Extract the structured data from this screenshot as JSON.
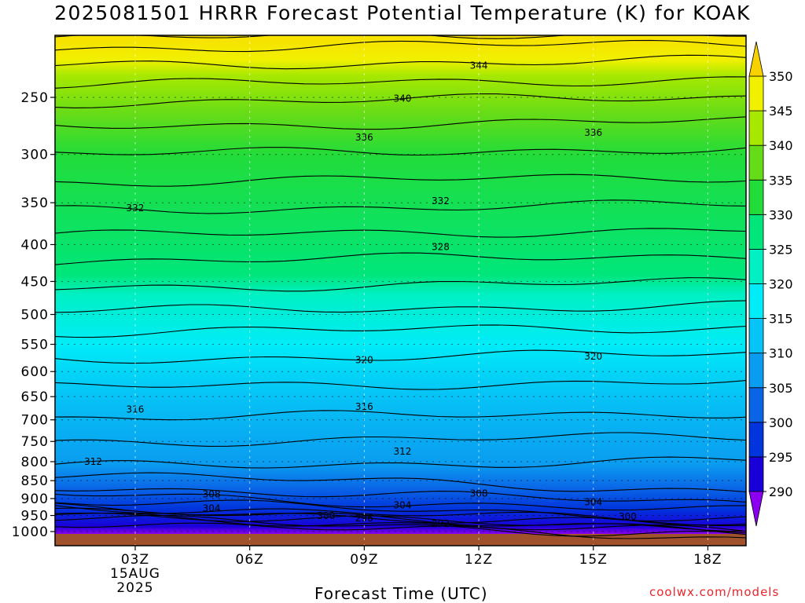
{
  "title": "2025081501 HRRR Forecast Potential Temperature (K) for KOAK",
  "credit": "coolwx.com/models",
  "chart_data": {
    "type": "heatmap",
    "title": "2025081501 HRRR Forecast Potential Temperature (K) for KOAK",
    "xlabel": "Forecast Time (UTC)",
    "ylabel": "",
    "x_range_hours_from_00Z": [
      0.9,
      19.0
    ],
    "y_range_hPa": [
      1000,
      200
    ],
    "y_scale": "log-pressure",
    "x_ticks": [
      {
        "hour": 3,
        "label": "03Z",
        "sub": [
          "15AUG",
          "2025"
        ]
      },
      {
        "hour": 6,
        "label": "06Z",
        "sub": []
      },
      {
        "hour": 9,
        "label": "09Z",
        "sub": []
      },
      {
        "hour": 12,
        "label": "12Z",
        "sub": []
      },
      {
        "hour": 15,
        "label": "15Z",
        "sub": []
      },
      {
        "hour": 18,
        "label": "18Z",
        "sub": []
      }
    ],
    "y_ticks": [
      250,
      300,
      350,
      400,
      450,
      500,
      550,
      600,
      650,
      700,
      750,
      800,
      850,
      900,
      950,
      1000
    ],
    "colorbar_levels": [
      290,
      295,
      300,
      305,
      310,
      315,
      320,
      325,
      330,
      335,
      340,
      345,
      350
    ],
    "colorbar_colors": [
      "#8b00f0",
      "#1a00d8",
      "#0034dc",
      "#0a64e6",
      "#0a9cf0",
      "#06c4f6",
      "#00ecf8",
      "#00f0c4",
      "#00e67a",
      "#22dc3a",
      "#64dc18",
      "#a8e800",
      "#f0f000",
      "#f8d200"
    ],
    "contour_interval_K": 2,
    "contour_labels": [
      {
        "value": 344,
        "hour": 12.0,
        "p": 226
      },
      {
        "value": 340,
        "hour": 10.0,
        "p": 251
      },
      {
        "value": 336,
        "hour": 9.0,
        "p": 284
      },
      {
        "value": 336,
        "hour": 15.0,
        "p": 280
      },
      {
        "value": 332,
        "hour": 3.0,
        "p": 356
      },
      {
        "value": 332,
        "hour": 11.0,
        "p": 348
      },
      {
        "value": 328,
        "hour": 11.0,
        "p": 403
      },
      {
        "value": 320,
        "hour": 9.0,
        "p": 578
      },
      {
        "value": 320,
        "hour": 15.0,
        "p": 572
      },
      {
        "value": 316,
        "hour": 3.0,
        "p": 677
      },
      {
        "value": 316,
        "hour": 9.0,
        "p": 671
      },
      {
        "value": 312,
        "hour": 10.0,
        "p": 774
      },
      {
        "value": 312,
        "hour": 1.9,
        "p": 800
      },
      {
        "value": 308,
        "hour": 5.0,
        "p": 888
      },
      {
        "value": 308,
        "hour": 12.0,
        "p": 885
      },
      {
        "value": 304,
        "hour": 5.0,
        "p": 929
      },
      {
        "value": 304,
        "hour": 10.0,
        "p": 920
      },
      {
        "value": 304,
        "hour": 15.0,
        "p": 910
      },
      {
        "value": 300,
        "hour": 8.0,
        "p": 951
      },
      {
        "value": 300,
        "hour": 15.9,
        "p": 953
      },
      {
        "value": 296,
        "hour": 9.0,
        "p": 958
      },
      {
        "value": 292,
        "hour": 11.0,
        "p": 975
      }
    ]
  }
}
